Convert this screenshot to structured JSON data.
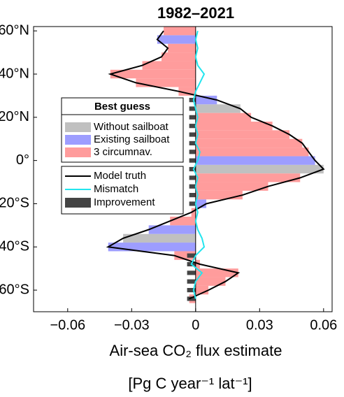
{
  "chart_data": {
    "type": "bar",
    "title": "1982–2021",
    "xlabel": "Air-sea CO₂ flux estimate",
    "xlabel2": "[Pg C year⁻¹ lat⁻¹]",
    "legend_title": "Best guess",
    "xlim": [
      -0.076,
      0.064
    ],
    "xticks": [
      {
        "value": -0.06,
        "label": "−0.06"
      },
      {
        "value": -0.03,
        "label": "−0.03"
      },
      0,
      0.03,
      0.06
    ],
    "ylim": [
      -70,
      62
    ],
    "yticks": [
      {
        "value": 60,
        "label": "60°N"
      },
      {
        "value": 40,
        "label": "40°N"
      },
      {
        "value": 20,
        "label": "20°N"
      },
      {
        "value": 0,
        "label": "0°"
      },
      {
        "value": -20,
        "label": "20°S"
      },
      {
        "value": -40,
        "label": "40°S"
      },
      {
        "value": -60,
        "label": "60°S"
      }
    ],
    "y": [
      60,
      56,
      52,
      48,
      44,
      40,
      36,
      32,
      28,
      24,
      20,
      16,
      12,
      8,
      4,
      0,
      -4,
      -8,
      -12,
      -16,
      -20,
      -24,
      -28,
      -32,
      -36,
      -40,
      -44,
      -48,
      -52,
      -56,
      -60,
      -64
    ],
    "series": [
      {
        "name": "Without sailboat",
        "type": "bar",
        "color": "#c0c0c0",
        "legend": 1,
        "values": [
          null,
          null,
          null,
          null,
          null,
          null,
          null,
          null,
          null,
          0.021,
          null,
          null,
          null,
          null,
          null,
          null,
          0.06,
          null,
          null,
          null,
          null,
          null,
          null,
          null,
          -0.034,
          null,
          null,
          null,
          null,
          null,
          null,
          null
        ]
      },
      {
        "name": "Existing sailboat",
        "type": "bar",
        "color": "#9d9dff",
        "legend": 1,
        "values": [
          null,
          -0.018,
          null,
          null,
          null,
          null,
          null,
          null,
          0.01,
          null,
          null,
          null,
          null,
          null,
          null,
          0.056,
          null,
          null,
          null,
          null,
          0.005,
          null,
          null,
          -0.022,
          null,
          -0.041,
          null,
          null,
          null,
          null,
          null,
          null
        ]
      },
      {
        "name": "3 circumnav.",
        "type": "bar",
        "color": "#ff9c9c",
        "legend": 1,
        "values": [
          -0.015,
          null,
          -0.013,
          -0.016,
          -0.025,
          -0.04,
          -0.028,
          -0.008,
          null,
          null,
          0.026,
          0.036,
          0.044,
          0.05,
          0.053,
          null,
          null,
          0.049,
          0.034,
          0.022,
          null,
          -0.002,
          -0.012,
          null,
          null,
          null,
          -0.01,
          0.002,
          0.02,
          0.014,
          0.006,
          -0.003
        ]
      },
      {
        "name": "Model truth",
        "type": "line",
        "color": "#000000",
        "legend": 2,
        "values": [
          -0.015,
          -0.018,
          -0.013,
          -0.016,
          -0.025,
          -0.04,
          -0.028,
          -0.008,
          0.01,
          0.021,
          0.026,
          0.036,
          0.044,
          0.05,
          0.053,
          0.056,
          0.06,
          0.049,
          0.034,
          0.022,
          0.005,
          -0.002,
          -0.012,
          -0.022,
          -0.034,
          -0.041,
          -0.01,
          0.002,
          0.02,
          0.014,
          0.006,
          -0.003
        ]
      },
      {
        "name": "Mismatch",
        "type": "line",
        "color": "#22e5ee",
        "legend": 2,
        "values": [
          0.001,
          0,
          0.001,
          0,
          0.001,
          0.004,
          0.002,
          0,
          -0.001,
          0,
          0.001,
          0,
          0.001,
          0,
          0.002,
          0.001,
          -0.001,
          0.001,
          0,
          0.001,
          0,
          0.001,
          0,
          0.001,
          0.003,
          0.004,
          0,
          -0.002,
          0.003,
          0,
          -0.001,
          0
        ]
      },
      {
        "name": "Improvement",
        "type": "bar",
        "color": "#444444",
        "legend": 2,
        "values": [
          null,
          null,
          null,
          null,
          null,
          null,
          null,
          null,
          -0.003,
          -0.003,
          -0.003,
          -0.003,
          -0.003,
          -0.003,
          -0.003,
          -0.003,
          -0.003,
          -0.003,
          -0.003,
          -0.003,
          -0.003,
          null,
          null,
          null,
          null,
          null,
          -0.004,
          -0.004,
          -0.004,
          -0.004,
          -0.004,
          -0.004
        ]
      }
    ]
  }
}
